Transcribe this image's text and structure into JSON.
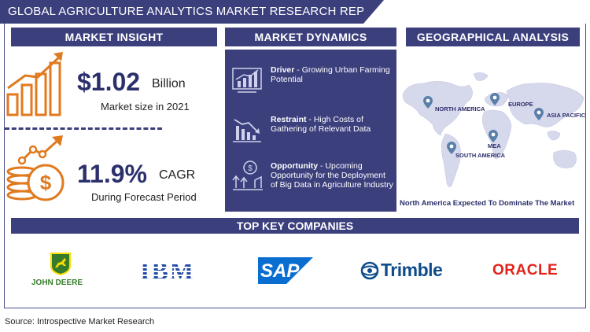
{
  "title": "GLOBAL AGRICULTURE ANALYTICS MARKET RESEARCH REPORT",
  "sections": {
    "insight": "MARKET INSIGHT",
    "dynamics": "MARKET DYNAMICS",
    "geo": "GEOGRAPHICAL ANALYSIS",
    "companies": "TOP KEY COMPANIES"
  },
  "insight": {
    "value": "$1.02",
    "unit": "Billion",
    "caption": "Market size in 2021",
    "cagr_value": "11.9%",
    "cagr_label": "CAGR",
    "cagr_caption": "During Forecast Period"
  },
  "dynamics": [
    {
      "label": "Driver",
      "text": " - Growing Urban Farming Potential",
      "icon": "growth-chart-icon"
    },
    {
      "label": "Restraint",
      "text": " - High Costs of Gathering of Relevant Data",
      "icon": "declining-chart-icon"
    },
    {
      "label": "Opportunity",
      "text": " - Upcoming Opportunity for the Deployment of Big Data in Agriculture Industry",
      "icon": "opportunity-growth-icon"
    }
  ],
  "geo": {
    "regions": [
      "NORTH AMERICA",
      "EUROPE",
      "ASIA PACIFIC",
      "MEA",
      "SOUTH AMERICA"
    ],
    "caption": "North America Expected To Dominate The Market"
  },
  "companies": {
    "john_deere": "JOHN DEERE",
    "ibm": "IBM",
    "sap": "SAP",
    "trimble": "Trimble",
    "oracle": "ORACLE"
  },
  "colors": {
    "navy": "#3b3f7c",
    "orange": "#e07a1f",
    "john_deere_green": "#367c2b",
    "john_deere_yellow": "#ffde00",
    "ibm_blue": "#1f4aa8",
    "sap_blue": "#0a6ed1",
    "trimble_blue": "#0e4c8c",
    "oracle_red": "#e2231a"
  },
  "source": "Source: Introspective Market Research"
}
